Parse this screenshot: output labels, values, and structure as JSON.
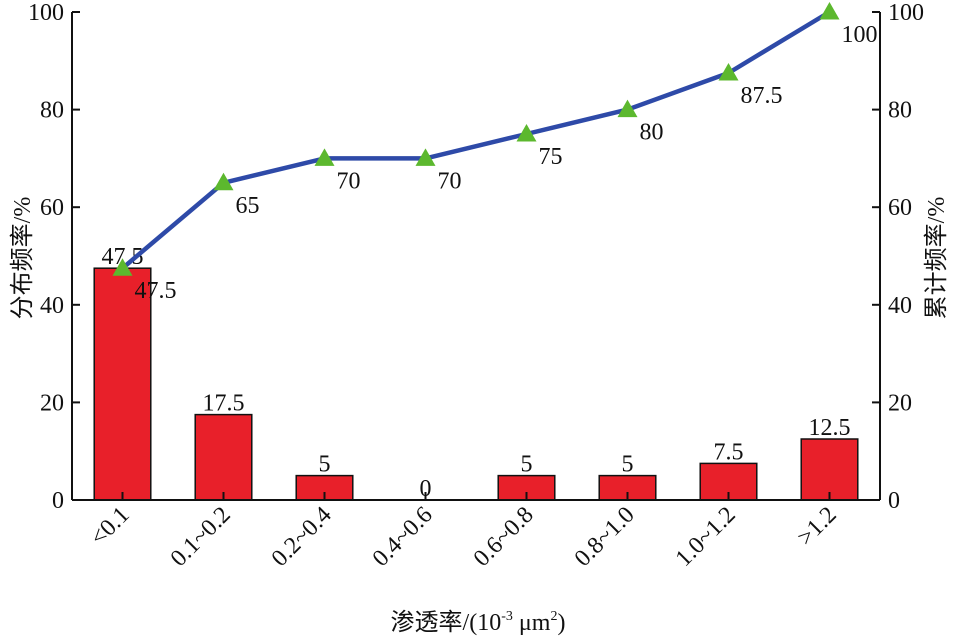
{
  "chart_data": {
    "type": "bar",
    "categories": [
      "<0.1",
      "0.1~0.2",
      "0.2~0.4",
      "0.4~0.6",
      "0.6~0.8",
      "0.8~1.0",
      "1.0~1.2",
      ">1.2"
    ],
    "series": [
      {
        "type": "bar",
        "axis": "left",
        "color": "#e8202a",
        "values": [
          47.5,
          17.5,
          5,
          0,
          5,
          5,
          7.5,
          12.5
        ],
        "labels": [
          "47.5",
          "17.5",
          "5",
          "0",
          "5",
          "5",
          "7.5",
          "12.5"
        ]
      },
      {
        "type": "line",
        "axis": "right",
        "color": "#2e4aa8",
        "marker": "triangle",
        "marker_color": "#5cb82e",
        "values": [
          47.5,
          65,
          70,
          70,
          75,
          80,
          87.5,
          100
        ],
        "labels": [
          "47.5",
          "65",
          "70",
          "70",
          "75",
          "80",
          "87.5",
          "100"
        ]
      }
    ],
    "ylabel": "分布频率/%",
    "y2label": "累计频率/%",
    "xlabel_main": "渗透率/(10",
    "xlabel_sup1": "-3",
    "xlabel_unit": " μm",
    "xlabel_sup2": "2",
    "xlabel_close": ")",
    "ylim": [
      0,
      100
    ],
    "y2lim": [
      0,
      100
    ],
    "yticks": [
      0,
      20,
      40,
      60,
      80,
      100
    ],
    "y2ticks": [
      0,
      20,
      40,
      60,
      80,
      100
    ],
    "grid": false,
    "legend": "none"
  }
}
